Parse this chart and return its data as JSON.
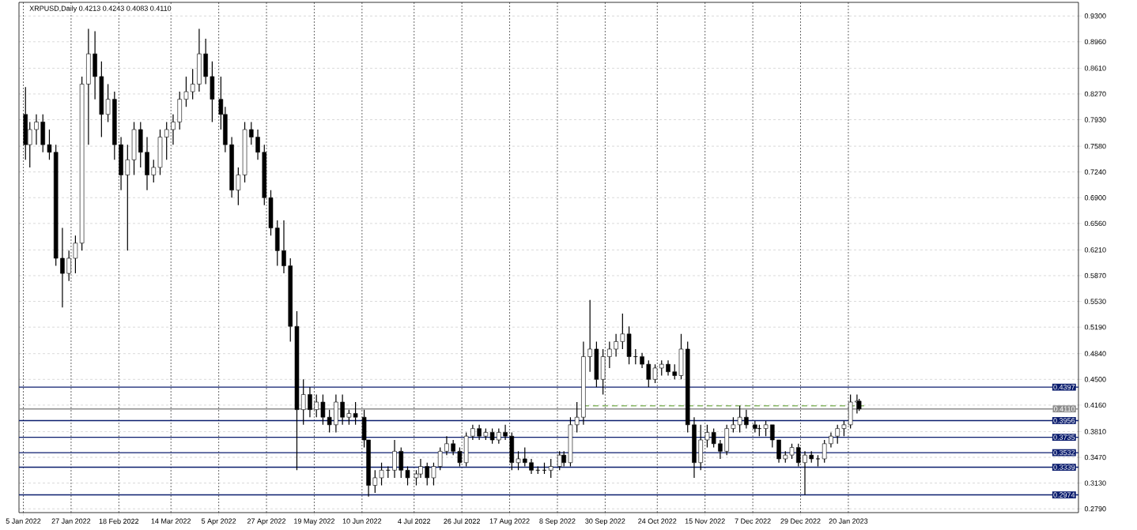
{
  "chart_data": {
    "type": "candlestick",
    "title": "XRPUSD,Daily  0.4213 0.4243 0.4083 0.4110",
    "xlim": [
      "2022-01-03",
      "2023-05-06"
    ],
    "ylim": [
      0.274,
      0.948
    ],
    "grid": true,
    "xticks": [
      {
        "value": "2022-01-05",
        "label": "5 Jan 2022"
      },
      {
        "value": "2022-01-27",
        "label": "27 Jan 2022"
      },
      {
        "value": "2022-02-18",
        "label": "18 Feb 2022"
      },
      {
        "value": "2022-03-14",
        "label": "14 Mar 2022"
      },
      {
        "value": "2022-04-05",
        "label": "5 Apr 2022"
      },
      {
        "value": "2022-04-27",
        "label": "27 Apr 2022"
      },
      {
        "value": "2022-05-19",
        "label": "19 May 2022"
      },
      {
        "value": "2022-06-10",
        "label": "10 Jun 2022"
      },
      {
        "value": "2022-07-04",
        "label": "4 Jul 2022"
      },
      {
        "value": "2022-07-26",
        "label": "26 Jul 2022"
      },
      {
        "value": "2022-08-17",
        "label": "17 Aug 2022"
      },
      {
        "value": "2022-09-08",
        "label": "8 Sep 2022"
      },
      {
        "value": "2022-09-30",
        "label": "30 Sep 2022"
      },
      {
        "value": "2022-10-24",
        "label": "24 Oct 2022"
      },
      {
        "value": "2022-11-15",
        "label": "15 Nov 2022"
      },
      {
        "value": "2022-12-07",
        "label": "7 Dec 2022"
      },
      {
        "value": "2022-12-29",
        "label": "29 Dec 2022"
      },
      {
        "value": "2023-01-20",
        "label": "20 Jan 2023"
      }
    ],
    "yticks": [
      {
        "value": 0.93,
        "label": "0.9300"
      },
      {
        "value": 0.896,
        "label": "0.8960"
      },
      {
        "value": 0.861,
        "label": "0.8610"
      },
      {
        "value": 0.827,
        "label": "0.8270"
      },
      {
        "value": 0.793,
        "label": "0.7930"
      },
      {
        "value": 0.758,
        "label": "0.7580"
      },
      {
        "value": 0.724,
        "label": "0.7240"
      },
      {
        "value": 0.69,
        "label": "0.6900"
      },
      {
        "value": 0.656,
        "label": "0.6560"
      },
      {
        "value": 0.621,
        "label": "0.6210"
      },
      {
        "value": 0.587,
        "label": "0.5870"
      },
      {
        "value": 0.553,
        "label": "0.5530"
      },
      {
        "value": 0.519,
        "label": "0.5190"
      },
      {
        "value": 0.484,
        "label": "0.4840"
      },
      {
        "value": 0.45,
        "label": "0.4500"
      },
      {
        "value": 0.416,
        "label": "0.4160"
      },
      {
        "value": 0.381,
        "label": "0.3810"
      },
      {
        "value": 0.347,
        "label": "0.3470"
      },
      {
        "value": 0.313,
        "label": "0.3130"
      },
      {
        "value": 0.279,
        "label": "0.2790"
      }
    ],
    "ref_lines": [
      {
        "axis": "y",
        "value": 0.4397,
        "label": "0.4397",
        "color": "#0b1d6e"
      },
      {
        "axis": "y",
        "value": 0.411,
        "label": "0.4110",
        "color": "#8c8c8c"
      },
      {
        "axis": "y",
        "value": 0.3956,
        "label": "0.3956",
        "color": "#0b1d6e"
      },
      {
        "axis": "y",
        "value": 0.3735,
        "label": "0.3735",
        "color": "#0b1d6e"
      },
      {
        "axis": "y",
        "value": 0.3532,
        "label": "0.3532",
        "color": "#0b1d6e"
      },
      {
        "axis": "y",
        "value": 0.3339,
        "label": "0.3339",
        "color": "#0b1d6e"
      },
      {
        "axis": "y",
        "value": 0.2974,
        "label": "0.2974",
        "color": "#0b1d6e"
      }
    ],
    "series": [
      {
        "type": "candlestick",
        "color": "#000000",
        "x": [
          "2022-01-06",
          "2022-01-08",
          "2022-01-11",
          "2022-01-14",
          "2022-01-17",
          "2022-01-20",
          "2022-01-23",
          "2022-01-26",
          "2022-01-29",
          "2022-02-01",
          "2022-02-04",
          "2022-02-07",
          "2022-02-10",
          "2022-02-13",
          "2022-02-16",
          "2022-02-19",
          "2022-02-22",
          "2022-02-25",
          "2022-02-28",
          "2022-03-03",
          "2022-03-06",
          "2022-03-09",
          "2022-03-12",
          "2022-03-15",
          "2022-03-18",
          "2022-03-21",
          "2022-03-24",
          "2022-03-27",
          "2022-03-30",
          "2022-04-02",
          "2022-04-06",
          "2022-04-08",
          "2022-04-11",
          "2022-04-14",
          "2022-04-17",
          "2022-04-20",
          "2022-04-23",
          "2022-04-26",
          "2022-04-29",
          "2022-05-02",
          "2022-05-05",
          "2022-05-08",
          "2022-05-11",
          "2022-05-14",
          "2022-05-17",
          "2022-05-20",
          "2022-05-23",
          "2022-05-26",
          "2022-05-29",
          "2022-06-01",
          "2022-06-04",
          "2022-06-07",
          "2022-06-11",
          "2022-06-13",
          "2022-06-16",
          "2022-06-19",
          "2022-06-22",
          "2022-06-25",
          "2022-06-28",
          "2022-07-01",
          "2022-07-05",
          "2022-07-07",
          "2022-07-10",
          "2022-07-13",
          "2022-07-16",
          "2022-07-19",
          "2022-07-22",
          "2022-07-25",
          "2022-07-28",
          "2022-07-31",
          "2022-08-03",
          "2022-08-06",
          "2022-08-09",
          "2022-08-12",
          "2022-08-15",
          "2022-08-18",
          "2022-08-21",
          "2022-08-24",
          "2022-08-27",
          "2022-08-30",
          "2022-09-02",
          "2022-09-05",
          "2022-09-09",
          "2022-09-11",
          "2022-09-14",
          "2022-09-17",
          "2022-09-20",
          "2022-09-23",
          "2022-09-26",
          "2022-09-29",
          "2022-10-02",
          "2022-10-05",
          "2022-10-08",
          "2022-10-11",
          "2022-10-14",
          "2022-10-17",
          "2022-10-20",
          "2022-10-23",
          "2022-10-26",
          "2022-10-29",
          "2022-11-01",
          "2022-11-04",
          "2022-11-07",
          "2022-11-10",
          "2022-11-13",
          "2022-11-16",
          "2022-11-19",
          "2022-11-22",
          "2022-11-25",
          "2022-11-28",
          "2022-12-01",
          "2022-12-04",
          "2022-12-08",
          "2022-12-10",
          "2022-12-13",
          "2022-12-16",
          "2022-12-19",
          "2022-12-22",
          "2022-12-25",
          "2022-12-28",
          "2022-12-31",
          "2023-01-03",
          "2023-01-06",
          "2023-01-09",
          "2023-01-12",
          "2023-01-15",
          "2023-01-18",
          "2023-01-21",
          "2023-01-24",
          "2023-01-25"
        ],
        "ohlc": [
          [
            0.8,
            0.836,
            0.74,
            0.76
          ],
          [
            0.76,
            0.79,
            0.73,
            0.78
          ],
          [
            0.78,
            0.8,
            0.76,
            0.79
          ],
          [
            0.79,
            0.8,
            0.75,
            0.76
          ],
          [
            0.76,
            0.78,
            0.74,
            0.75
          ],
          [
            0.75,
            0.76,
            0.6,
            0.61
          ],
          [
            0.61,
            0.65,
            0.545,
            0.59
          ],
          [
            0.59,
            0.62,
            0.58,
            0.61
          ],
          [
            0.61,
            0.64,
            0.59,
            0.63
          ],
          [
            0.63,
            0.85,
            0.62,
            0.84
          ],
          [
            0.84,
            0.913,
            0.76,
            0.88
          ],
          [
            0.88,
            0.91,
            0.82,
            0.85
          ],
          [
            0.85,
            0.87,
            0.77,
            0.8
          ],
          [
            0.8,
            0.84,
            0.79,
            0.82
          ],
          [
            0.82,
            0.83,
            0.74,
            0.76
          ],
          [
            0.76,
            0.77,
            0.7,
            0.72
          ],
          [
            0.72,
            0.76,
            0.62,
            0.74
          ],
          [
            0.74,
            0.79,
            0.72,
            0.78
          ],
          [
            0.78,
            0.79,
            0.73,
            0.75
          ],
          [
            0.75,
            0.77,
            0.7,
            0.72
          ],
          [
            0.72,
            0.74,
            0.71,
            0.73
          ],
          [
            0.73,
            0.78,
            0.72,
            0.77
          ],
          [
            0.77,
            0.79,
            0.74,
            0.78
          ],
          [
            0.78,
            0.8,
            0.76,
            0.79
          ],
          [
            0.79,
            0.83,
            0.78,
            0.82
          ],
          [
            0.82,
            0.85,
            0.81,
            0.83
          ],
          [
            0.83,
            0.86,
            0.82,
            0.84
          ],
          [
            0.84,
            0.913,
            0.83,
            0.88
          ],
          [
            0.88,
            0.9,
            0.84,
            0.85
          ],
          [
            0.85,
            0.87,
            0.79,
            0.82
          ],
          [
            0.82,
            0.85,
            0.78,
            0.8
          ],
          [
            0.8,
            0.81,
            0.75,
            0.76
          ],
          [
            0.76,
            0.77,
            0.69,
            0.7
          ],
          [
            0.7,
            0.73,
            0.68,
            0.72
          ],
          [
            0.72,
            0.79,
            0.71,
            0.78
          ],
          [
            0.78,
            0.79,
            0.76,
            0.77
          ],
          [
            0.77,
            0.78,
            0.74,
            0.75
          ],
          [
            0.75,
            0.76,
            0.68,
            0.69
          ],
          [
            0.69,
            0.7,
            0.64,
            0.65
          ],
          [
            0.65,
            0.66,
            0.6,
            0.62
          ],
          [
            0.62,
            0.66,
            0.59,
            0.6
          ],
          [
            0.6,
            0.61,
            0.5,
            0.52
          ],
          [
            0.52,
            0.54,
            0.33,
            0.41
          ],
          [
            0.41,
            0.45,
            0.39,
            0.43
          ],
          [
            0.43,
            0.44,
            0.4,
            0.41
          ],
          [
            0.41,
            0.43,
            0.4,
            0.42
          ],
          [
            0.42,
            0.43,
            0.39,
            0.4
          ],
          [
            0.4,
            0.41,
            0.38,
            0.39
          ],
          [
            0.39,
            0.43,
            0.38,
            0.42
          ],
          [
            0.42,
            0.43,
            0.39,
            0.4
          ],
          [
            0.4,
            0.41,
            0.39,
            0.405
          ],
          [
            0.405,
            0.42,
            0.39,
            0.4
          ],
          [
            0.4,
            0.41,
            0.36,
            0.37
          ],
          [
            0.37,
            0.37,
            0.295,
            0.31
          ],
          [
            0.31,
            0.33,
            0.3,
            0.32
          ],
          [
            0.32,
            0.34,
            0.31,
            0.33
          ],
          [
            0.33,
            0.335,
            0.32,
            0.33
          ],
          [
            0.33,
            0.37,
            0.32,
            0.355
          ],
          [
            0.355,
            0.36,
            0.32,
            0.33
          ],
          [
            0.33,
            0.335,
            0.31,
            0.32
          ],
          [
            0.32,
            0.33,
            0.31,
            0.325
          ],
          [
            0.325,
            0.345,
            0.32,
            0.335
          ],
          [
            0.335,
            0.34,
            0.31,
            0.32
          ],
          [
            0.32,
            0.34,
            0.31,
            0.335
          ],
          [
            0.335,
            0.36,
            0.33,
            0.355
          ],
          [
            0.355,
            0.375,
            0.35,
            0.365
          ],
          [
            0.365,
            0.37,
            0.35,
            0.355
          ],
          [
            0.355,
            0.36,
            0.335,
            0.34
          ],
          [
            0.34,
            0.38,
            0.335,
            0.375
          ],
          [
            0.375,
            0.39,
            0.37,
            0.385
          ],
          [
            0.385,
            0.39,
            0.37,
            0.375
          ],
          [
            0.375,
            0.385,
            0.37,
            0.38
          ],
          [
            0.38,
            0.385,
            0.365,
            0.37
          ],
          [
            0.37,
            0.385,
            0.365,
            0.38
          ],
          [
            0.38,
            0.39,
            0.37,
            0.375
          ],
          [
            0.375,
            0.38,
            0.33,
            0.34
          ],
          [
            0.34,
            0.355,
            0.33,
            0.345
          ],
          [
            0.345,
            0.36,
            0.335,
            0.34
          ],
          [
            0.34,
            0.345,
            0.325,
            0.33
          ],
          [
            0.33,
            0.335,
            0.325,
            0.33
          ],
          [
            0.33,
            0.34,
            0.325,
            0.33
          ],
          [
            0.33,
            0.345,
            0.32,
            0.335
          ],
          [
            0.335,
            0.355,
            0.33,
            0.35
          ],
          [
            0.35,
            0.355,
            0.335,
            0.34
          ],
          [
            0.34,
            0.4,
            0.335,
            0.39
          ],
          [
            0.39,
            0.42,
            0.38,
            0.4
          ],
          [
            0.4,
            0.5,
            0.39,
            0.48
          ],
          [
            0.48,
            0.555,
            0.46,
            0.49
          ],
          [
            0.49,
            0.5,
            0.44,
            0.45
          ],
          [
            0.45,
            0.49,
            0.43,
            0.48
          ],
          [
            0.48,
            0.5,
            0.465,
            0.49
          ],
          [
            0.49,
            0.51,
            0.48,
            0.5
          ],
          [
            0.5,
            0.537,
            0.49,
            0.51
          ],
          [
            0.51,
            0.52,
            0.47,
            0.48
          ],
          [
            0.48,
            0.49,
            0.47,
            0.48
          ],
          [
            0.48,
            0.485,
            0.465,
            0.47
          ],
          [
            0.47,
            0.475,
            0.44,
            0.45
          ],
          [
            0.45,
            0.47,
            0.445,
            0.465
          ],
          [
            0.465,
            0.475,
            0.455,
            0.47
          ],
          [
            0.47,
            0.475,
            0.455,
            0.46
          ],
          [
            0.46,
            0.47,
            0.45,
            0.455
          ],
          [
            0.455,
            0.51,
            0.45,
            0.49
          ],
          [
            0.49,
            0.5,
            0.38,
            0.39
          ],
          [
            0.39,
            0.4,
            0.32,
            0.34
          ],
          [
            0.34,
            0.39,
            0.33,
            0.37
          ],
          [
            0.37,
            0.39,
            0.36,
            0.38
          ],
          [
            0.38,
            0.385,
            0.36,
            0.365
          ],
          [
            0.365,
            0.37,
            0.345,
            0.355
          ],
          [
            0.355,
            0.39,
            0.35,
            0.385
          ],
          [
            0.385,
            0.4,
            0.38,
            0.39
          ],
          [
            0.39,
            0.415,
            0.38,
            0.4
          ],
          [
            0.4,
            0.41,
            0.385,
            0.39
          ],
          [
            0.39,
            0.395,
            0.38,
            0.385
          ],
          [
            0.385,
            0.39,
            0.375,
            0.385
          ],
          [
            0.385,
            0.395,
            0.375,
            0.39
          ],
          [
            0.39,
            0.39,
            0.36,
            0.37
          ],
          [
            0.37,
            0.37,
            0.34,
            0.345
          ],
          [
            0.345,
            0.355,
            0.34,
            0.35
          ],
          [
            0.35,
            0.365,
            0.345,
            0.36
          ],
          [
            0.36,
            0.365,
            0.335,
            0.34
          ],
          [
            0.34,
            0.355,
            0.2974,
            0.35
          ],
          [
            0.35,
            0.355,
            0.34,
            0.345
          ],
          [
            0.345,
            0.35,
            0.335,
            0.345
          ],
          [
            0.345,
            0.37,
            0.34,
            0.365
          ],
          [
            0.365,
            0.38,
            0.36,
            0.375
          ],
          [
            0.375,
            0.39,
            0.365,
            0.385
          ],
          [
            0.385,
            0.395,
            0.375,
            0.39
          ],
          [
            0.39,
            0.43,
            0.385,
            0.42
          ],
          [
            0.42,
            0.43,
            0.405,
            0.4213
          ],
          [
            0.4213,
            0.4243,
            0.4083,
            0.411
          ]
        ]
      },
      {
        "type": "line",
        "color": "#3a8a00",
        "line_style": "dashed",
        "x": [
          "2022-09-20",
          "2023-01-28"
        ],
        "values": [
          0.415,
          0.415
        ]
      }
    ]
  }
}
